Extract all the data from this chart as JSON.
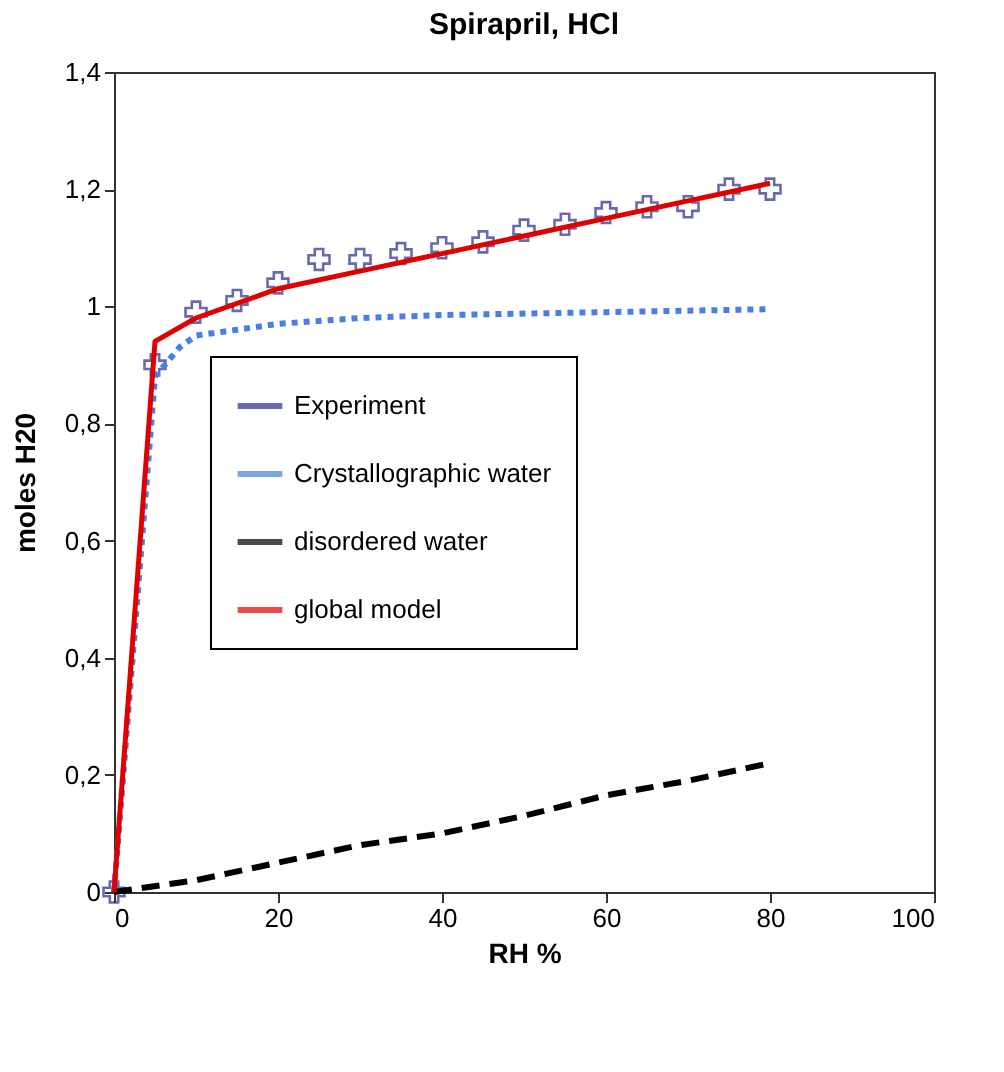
{
  "chart_data": {
    "type": "line",
    "title": "Spirapril, HCl",
    "xlabel": "RH %",
    "ylabel": "moles H20",
    "xlim": [
      0,
      100
    ],
    "xticks": [
      0,
      20,
      40,
      60,
      80,
      100
    ],
    "ylim": [
      0,
      1.4
    ],
    "yticks": [
      {
        "value": 0,
        "label": "0"
      },
      {
        "value": 0.2,
        "label": "0,2"
      },
      {
        "value": 0.4,
        "label": "0,4"
      },
      {
        "value": 0.6,
        "label": "0,6"
      },
      {
        "value": 0.8,
        "label": "0,8"
      },
      {
        "value": 1,
        "label": "1"
      },
      {
        "value": 1.2,
        "label": "1,2"
      },
      {
        "value": 1.4,
        "label": "1,4"
      }
    ],
    "grid": false,
    "legend": "left",
    "series": [
      {
        "name": "Experiment",
        "type": "scatter",
        "marker": "cross",
        "color": "#2b2b8c",
        "x": [
          0,
          5,
          10,
          15,
          20,
          25,
          30,
          35,
          40,
          45,
          50,
          55,
          60,
          65,
          70,
          75,
          80
        ],
        "values": [
          0,
          0.9,
          0.99,
          1.01,
          1.04,
          1.08,
          1.08,
          1.09,
          1.1,
          1.11,
          1.13,
          1.14,
          1.16,
          1.17,
          1.17,
          1.2,
          1.2
        ]
      },
      {
        "name": "Crystallographic water",
        "line_style": "dotted",
        "color": "#4a7fe0",
        "x": [
          0,
          5,
          8,
          10,
          15,
          20,
          30,
          40,
          60,
          80
        ],
        "values": [
          0,
          0.88,
          0.93,
          0.95,
          0.96,
          0.97,
          0.98,
          0.985,
          0.99,
          0.995
        ]
      },
      {
        "name": "disordered water",
        "line_style": "dashed",
        "color": "#000000",
        "x": [
          0,
          10,
          20,
          30,
          40,
          50,
          60,
          70,
          80
        ],
        "values": [
          0,
          0.02,
          0.05,
          0.08,
          0.1,
          0.13,
          0.165,
          0.19,
          0.22
        ]
      },
      {
        "name": "global model",
        "line_style": "solid",
        "color": "#e00000",
        "x": [
          0,
          5,
          10,
          20,
          30,
          40,
          50,
          60,
          70,
          80
        ],
        "values": [
          0,
          0.94,
          0.98,
          1.03,
          1.06,
          1.09,
          1.12,
          1.15,
          1.18,
          1.21
        ]
      }
    ]
  }
}
